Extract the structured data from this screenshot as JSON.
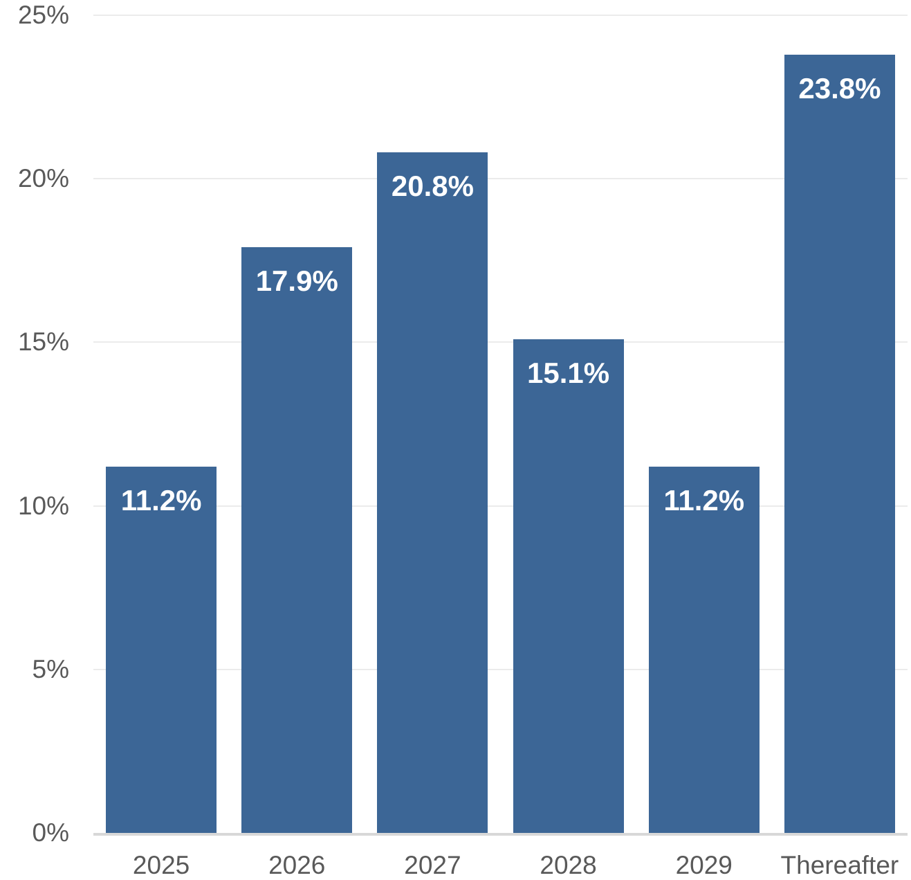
{
  "chart_data": {
    "type": "bar",
    "title": "",
    "xlabel": "",
    "ylabel": "",
    "categories": [
      "2025",
      "2026",
      "2027",
      "2028",
      "2029",
      "Thereafter"
    ],
    "values": [
      11.2,
      17.9,
      20.8,
      15.1,
      11.2,
      23.8
    ],
    "value_labels": [
      "11.2%",
      "17.9%",
      "20.8%",
      "15.1%",
      "11.2%",
      "23.8%"
    ],
    "ylim": [
      0,
      25
    ],
    "yticks": [
      0,
      5,
      10,
      15,
      20,
      25
    ],
    "ytick_labels": [
      "0%",
      "5%",
      "10%",
      "15%",
      "20%",
      "25%"
    ],
    "grid": true,
    "legend": "none",
    "colors": {
      "bar_fill": "#3C6696",
      "value_label_text": "#FFFFFF",
      "axis_text": "#595959",
      "gridline": "#EBEBEB",
      "axis_line": "#D8D8D8",
      "background": "#FFFFFF"
    }
  }
}
